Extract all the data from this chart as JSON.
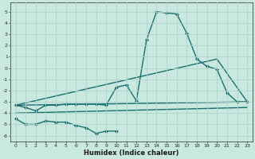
{
  "xlabel": "Humidex (Indice chaleur)",
  "background_color": "#c8e8e0",
  "grid_color": "#b0d4cc",
  "line_color": "#1a6e6e",
  "xlim": [
    -0.5,
    23.5
  ],
  "ylim": [
    -6.5,
    5.8
  ],
  "yticks": [
    -6,
    -5,
    -4,
    -3,
    -2,
    -1,
    0,
    1,
    2,
    3,
    4,
    5
  ],
  "xticks": [
    0,
    1,
    2,
    3,
    4,
    5,
    6,
    7,
    8,
    9,
    10,
    11,
    12,
    13,
    14,
    15,
    16,
    17,
    18,
    19,
    20,
    21,
    22,
    23
  ],
  "series": [
    {
      "x": [
        0,
        1,
        2,
        3,
        4,
        5,
        6,
        7,
        8,
        9,
        10,
        11,
        12,
        13,
        14,
        15,
        16,
        17,
        18,
        19,
        20,
        21,
        22,
        23
      ],
      "y": [
        -3.3,
        -3.5,
        -3.8,
        -3.3,
        -3.3,
        -3.2,
        -3.2,
        -3.2,
        -3.2,
        -3.3,
        -1.7,
        -1.5,
        -2.9,
        2.5,
        5.0,
        4.9,
        4.8,
        3.1,
        0.8,
        0.15,
        -0.1,
        -2.2,
        -3.0,
        -3.0
      ],
      "marker": "D",
      "marker_size": 2.0,
      "linewidth": 1.0
    },
    {
      "x": [
        0,
        23
      ],
      "y": [
        -3.3,
        -3.0
      ],
      "marker": null,
      "linewidth": 1.0
    },
    {
      "x": [
        0,
        20,
        23
      ],
      "y": [
        -3.3,
        0.8,
        -3.0
      ],
      "marker": null,
      "linewidth": 1.0
    },
    {
      "x": [
        0,
        1,
        2,
        3,
        4,
        5,
        6,
        7,
        8,
        9,
        10
      ],
      "y": [
        -4.5,
        -5.0,
        -5.0,
        -4.7,
        -4.8,
        -4.8,
        -5.1,
        -5.3,
        -5.8,
        -5.6,
        -5.6
      ],
      "marker": "D",
      "marker_size": 2.0,
      "linewidth": 1.0
    },
    {
      "x": [
        0,
        23
      ],
      "y": [
        -4.0,
        -3.5
      ],
      "marker": null,
      "linewidth": 1.0
    }
  ]
}
